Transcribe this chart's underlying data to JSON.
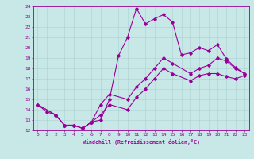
{
  "xlabel": "Windchill (Refroidissement éolien,°C)",
  "ylabel": "",
  "xlim": [
    -0.5,
    23.5
  ],
  "ylim": [
    12,
    24
  ],
  "xticks": [
    0,
    1,
    2,
    3,
    4,
    5,
    6,
    7,
    8,
    9,
    10,
    11,
    12,
    13,
    14,
    15,
    16,
    17,
    18,
    19,
    20,
    21,
    22,
    23
  ],
  "yticks": [
    12,
    13,
    14,
    15,
    16,
    17,
    18,
    19,
    20,
    21,
    22,
    23,
    24
  ],
  "line_color": "#990099",
  "bg_color": "#c8e8e8",
  "line1_x": [
    0,
    1,
    2,
    3,
    4,
    5,
    6,
    7,
    8,
    9,
    10,
    11,
    12,
    13,
    14,
    15,
    16,
    17,
    18,
    19,
    20,
    21,
    22,
    23
  ],
  "line1_y": [
    14.5,
    13.8,
    13.5,
    12.5,
    12.5,
    12.2,
    12.8,
    13.0,
    15.0,
    19.2,
    21.0,
    23.8,
    22.3,
    22.8,
    23.2,
    22.5,
    19.3,
    19.5,
    20.0,
    19.7,
    20.3,
    18.9,
    18.1,
    17.5
  ],
  "line2_x": [
    0,
    2,
    3,
    4,
    5,
    6,
    7,
    8,
    10,
    11,
    12,
    13,
    14,
    15,
    17,
    18,
    19,
    20,
    21,
    22,
    23
  ],
  "line2_y": [
    14.5,
    13.5,
    12.5,
    12.5,
    12.2,
    12.8,
    14.5,
    15.5,
    15.0,
    16.2,
    17.0,
    18.0,
    19.0,
    18.5,
    17.5,
    18.0,
    18.3,
    19.0,
    18.7,
    18.0,
    17.5
  ],
  "line3_x": [
    0,
    2,
    3,
    4,
    5,
    6,
    7,
    8,
    10,
    11,
    12,
    13,
    14,
    15,
    17,
    18,
    19,
    20,
    21,
    22,
    23
  ],
  "line3_y": [
    14.5,
    13.5,
    12.5,
    12.5,
    12.2,
    12.8,
    13.5,
    14.5,
    14.0,
    15.2,
    16.0,
    17.0,
    18.0,
    17.5,
    16.8,
    17.3,
    17.5,
    17.5,
    17.2,
    17.0,
    17.3
  ]
}
